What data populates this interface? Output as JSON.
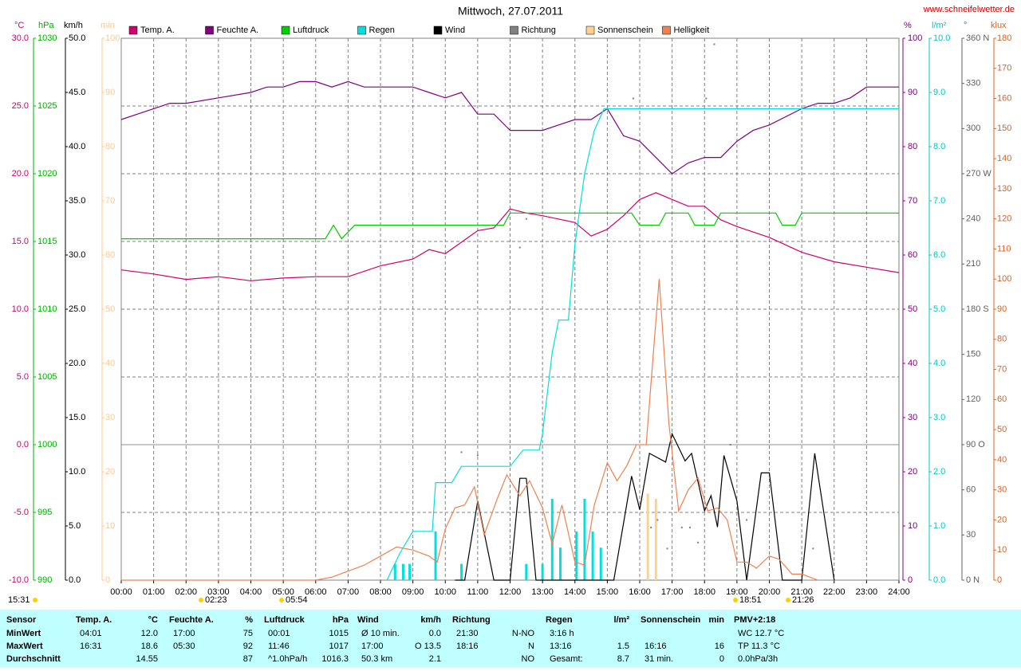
{
  "chart_data": {
    "type": "line",
    "title": "Mittwoch, 27.07.2011",
    "source": "www.schneifelwetter.de",
    "xlim": [
      0,
      24
    ],
    "xticks": [
      {
        "value": 0,
        "label": "00:00"
      },
      {
        "value": 1,
        "label": "01:00"
      },
      {
        "value": 2,
        "label": "02:00"
      },
      {
        "value": 3,
        "label": "03:00"
      },
      {
        "value": 4,
        "label": "04:00"
      },
      {
        "value": 5,
        "label": "05:00"
      },
      {
        "value": 6,
        "label": "06:00"
      },
      {
        "value": 7,
        "label": "07:00"
      },
      {
        "value": 8,
        "label": "08:00"
      },
      {
        "value": 9,
        "label": "09:00"
      },
      {
        "value": 10,
        "label": "10:00"
      },
      {
        "value": 11,
        "label": "11:00"
      },
      {
        "value": 12,
        "label": "12:00"
      },
      {
        "value": 13,
        "label": "13:00"
      },
      {
        "value": 14,
        "label": "14:00"
      },
      {
        "value": 15,
        "label": "15:00"
      },
      {
        "value": 16,
        "label": "16:00"
      },
      {
        "value": 17,
        "label": "17:00"
      },
      {
        "value": 18,
        "label": "18:00"
      },
      {
        "value": 19,
        "label": "19:00"
      },
      {
        "value": 20,
        "label": "20:00"
      },
      {
        "value": 21,
        "label": "21:00"
      },
      {
        "value": 22,
        "label": "22:00"
      },
      {
        "value": 23,
        "label": "23:00"
      },
      {
        "value": 24,
        "label": "24:00"
      }
    ],
    "grid": true,
    "grid_axis": "temp",
    "axes": {
      "temp": {
        "label": "°C",
        "color": "#cc0077",
        "ylim": [
          -10,
          30
        ],
        "yticks": [
          {
            "value": -10,
            "label": "-10.0"
          },
          {
            "value": -5,
            "label": "-5.0"
          },
          {
            "value": 0,
            "label": "0.0"
          },
          {
            "value": 5,
            "label": "5.0"
          },
          {
            "value": 10,
            "label": "10.0"
          },
          {
            "value": 15,
            "label": "15.0"
          },
          {
            "value": 20,
            "label": "20.0"
          },
          {
            "value": 25,
            "label": "25.0"
          },
          {
            "value": 30,
            "label": "30.0"
          }
        ]
      },
      "hpa": {
        "label": "hPa",
        "color": "#00b000",
        "ylim": [
          990,
          1030
        ],
        "yticks": [
          990,
          995,
          1000,
          1005,
          1010,
          1015,
          1020,
          1025,
          1030
        ]
      },
      "wind": {
        "label": "km/h",
        "color": "#000000",
        "ylim": [
          0,
          50
        ],
        "yticks": [
          {
            "value": 0,
            "label": "0.0"
          },
          {
            "value": 5,
            "label": "5.0"
          },
          {
            "value": 10,
            "label": "10.0"
          },
          {
            "value": 15,
            "label": "15.0"
          },
          {
            "value": 20,
            "label": "20.0"
          },
          {
            "value": 25,
            "label": "25.0"
          },
          {
            "value": 30,
            "label": "30.0"
          },
          {
            "value": 35,
            "label": "35.0"
          },
          {
            "value": 40,
            "label": "40.0"
          },
          {
            "value": 45,
            "label": "45.0"
          },
          {
            "value": 50,
            "label": "50.0"
          }
        ]
      },
      "min": {
        "label": "min",
        "color": "#ffc890",
        "ylim": [
          0,
          100
        ],
        "yticks": [
          0,
          10,
          20,
          30,
          40,
          50,
          60,
          70,
          80,
          90,
          100
        ]
      },
      "hum": {
        "label": "%",
        "color": "#800080",
        "ylim": [
          0,
          100
        ],
        "yticks": [
          0,
          10,
          20,
          30,
          40,
          50,
          60,
          70,
          80,
          90,
          100
        ]
      },
      "rain": {
        "label": "l/m²",
        "color": "#00c8c8",
        "ylim": [
          0,
          10
        ],
        "yticks": [
          {
            "value": 0,
            "label": "0.0"
          },
          {
            "value": 1,
            "label": "1.0"
          },
          {
            "value": 2,
            "label": "2.0"
          },
          {
            "value": 3,
            "label": "3.0"
          },
          {
            "value": 4,
            "label": "4.0"
          },
          {
            "value": 5,
            "label": "5.0"
          },
          {
            "value": 6,
            "label": "6.0"
          },
          {
            "value": 7,
            "label": "7.0"
          },
          {
            "value": 8,
            "label": "8.0"
          },
          {
            "value": 9,
            "label": "9.0"
          },
          {
            "value": 10,
            "label": "10.0"
          }
        ]
      },
      "dir": {
        "label": "°",
        "color": "#606060",
        "ylim": [
          0,
          360
        ],
        "yticks": [
          {
            "value": 0,
            "label": "0 N"
          },
          30,
          60,
          {
            "value": 90,
            "label": "90 O"
          },
          120,
          150,
          {
            "value": 180,
            "label": "180 S"
          },
          210,
          240,
          {
            "value": 270,
            "label": "270 W"
          },
          300,
          330,
          {
            "value": 360,
            "label": "360 N"
          }
        ]
      },
      "klux": {
        "label": "klux",
        "color": "#e06020",
        "ylim": [
          0,
          180
        ],
        "yticks": [
          0,
          10,
          20,
          30,
          40,
          50,
          60,
          70,
          80,
          90,
          100,
          110,
          120,
          130,
          140,
          150,
          160,
          170,
          180
        ]
      }
    },
    "series": [
      {
        "name": "Temp. A.",
        "color": "#d0006f",
        "kind": "line",
        "axis": "temp",
        "x": [
          0,
          1,
          2,
          3,
          4,
          5,
          6,
          7,
          8,
          9,
          9.5,
          10,
          11,
          11.5,
          12,
          12.5,
          13,
          14,
          14.5,
          15,
          15.5,
          16,
          16.5,
          17,
          17.5,
          18,
          18.5,
          19,
          20,
          21,
          22,
          23,
          24
        ],
        "values": [
          12.9,
          12.6,
          12.2,
          12.4,
          12.1,
          12.3,
          12.4,
          12.4,
          13.2,
          13.7,
          14.4,
          14.1,
          15.8,
          16.0,
          17.4,
          17.1,
          16.9,
          16.4,
          15.4,
          15.9,
          16.9,
          18.1,
          18.6,
          18.1,
          17.6,
          17.6,
          16.6,
          16.1,
          15.3,
          14.2,
          13.5,
          13.1,
          12.7
        ]
      },
      {
        "name": "Feuchte A.",
        "color": "#800080",
        "kind": "line",
        "axis": "hum",
        "x": [
          0,
          0.5,
          1,
          1.5,
          2,
          3,
          4,
          4.5,
          5,
          5.5,
          6,
          6.5,
          7,
          7.5,
          8,
          9,
          9.5,
          10,
          10.5,
          11,
          11.5,
          12,
          13,
          13.5,
          14,
          14.5,
          15,
          15.5,
          16,
          16.5,
          17,
          17.5,
          18,
          18.5,
          19,
          19.5,
          20,
          21,
          21.5,
          22,
          22.5,
          23,
          23.5,
          24
        ],
        "values": [
          85,
          86,
          87,
          88,
          88,
          89,
          90,
          91,
          91,
          92,
          92,
          91,
          92,
          91,
          91,
          91,
          90,
          89,
          90,
          86,
          86,
          83,
          83,
          84,
          85,
          85,
          87,
          82,
          81,
          78,
          75,
          77,
          78,
          78,
          81,
          83,
          84,
          87,
          88,
          88,
          89,
          91,
          91,
          91
        ]
      },
      {
        "name": "Luftdruck",
        "color": "#00cc00",
        "kind": "line",
        "axis": "hpa",
        "x": [
          0,
          6.3,
          6.55,
          6.8,
          7.2,
          11.8,
          12.0,
          15.75,
          16.0,
          16.6,
          16.8,
          17.5,
          17.7,
          18.3,
          18.5,
          20.2,
          20.4,
          20.8,
          21.0,
          24
        ],
        "values": [
          1015.2,
          1015.2,
          1016.2,
          1015.2,
          1016.2,
          1016.2,
          1017.1,
          1017.1,
          1016.2,
          1016.2,
          1017.1,
          1017.1,
          1016.2,
          1016.2,
          1017.1,
          1017.1,
          1016.2,
          1016.2,
          1017.1,
          1017.1
        ]
      },
      {
        "name": "Regen",
        "color": "#00e0e0",
        "kind": "line",
        "axis": "rain",
        "x": [
          8.2,
          8.6,
          9.0,
          9.6,
          9.7,
          10.2,
          10.5,
          12.0,
          12.4,
          12.9,
          13.0,
          13.3,
          13.5,
          13.8,
          14.0,
          14.3,
          14.6,
          14.9,
          24
        ],
        "values": [
          0,
          0.5,
          0.9,
          0.9,
          1.8,
          1.8,
          2.1,
          2.1,
          2.4,
          2.4,
          2.7,
          4.2,
          4.8,
          4.8,
          6.2,
          7.5,
          8.3,
          8.7,
          8.7
        ],
        "bar_x": [
          8.45,
          8.7,
          8.9,
          9.7,
          10.5,
          12.5,
          13.0,
          13.3,
          13.55,
          14.05,
          14.3,
          14.55,
          14.8
        ],
        "bar_values": [
          0.3,
          0.3,
          0.3,
          0.9,
          0.3,
          0.3,
          0.3,
          1.5,
          0.6,
          0.9,
          1.5,
          0.9,
          0.6
        ]
      },
      {
        "name": "Wind",
        "color": "#000000",
        "kind": "line",
        "axis": "wind",
        "x": [
          10.3,
          10.6,
          11.0,
          11.5,
          12.0,
          12.3,
          12.5,
          12.8,
          15.2,
          15.75,
          16.0,
          16.3,
          16.8,
          17.0,
          17.4,
          17.6,
          18.0,
          18.2,
          18.4,
          18.6,
          19.0,
          19.3,
          19.75,
          20.0,
          20.4,
          21.0,
          21.4,
          22.0
        ],
        "values": [
          0,
          0,
          7.3,
          0,
          0,
          9.4,
          9.4,
          0,
          0,
          9.6,
          6.5,
          11.7,
          10.9,
          13.5,
          11.0,
          11.7,
          6.4,
          7.8,
          4.9,
          11.5,
          7.3,
          0,
          9.9,
          9.9,
          0,
          0,
          11.7,
          0
        ]
      },
      {
        "name": "Richtung",
        "color": "#808080",
        "kind": "dots",
        "axis": "dir",
        "x": [
          10.5,
          11.0,
          12.3,
          12.5,
          15.8,
          16.35,
          16.55,
          16.85,
          17.3,
          17.55,
          17.8,
          18.05,
          18.3,
          18.8,
          19.3,
          21.35
        ],
        "values": [
          85,
          83,
          221,
          240,
          320,
          35,
          40,
          21,
          35,
          35,
          25,
          320,
          356,
          90,
          40,
          21
        ]
      },
      {
        "name": "Sonnenschein",
        "color": "#ffd090",
        "kind": "bars",
        "axis": "min",
        "x": [
          16.25,
          16.5
        ],
        "values": [
          16,
          15
        ]
      },
      {
        "name": "Helligkeit",
        "color": "#f08050",
        "kind": "line",
        "axis": "klux",
        "x": [
          0,
          6,
          6.5,
          7,
          7.5,
          8,
          8.5,
          9,
          9.5,
          9.75,
          10,
          10.3,
          10.6,
          10.9,
          11.2,
          11.6,
          11.9,
          12.3,
          12.6,
          13,
          13.3,
          13.6,
          14,
          14.3,
          14.6,
          15,
          15.3,
          15.6,
          15.9,
          16.2,
          16.6,
          16.9,
          17.2,
          17.5,
          17.8,
          18.1,
          18.4,
          18.7,
          19,
          19.3,
          19.6,
          20,
          20.3,
          20.7,
          21,
          21.5
        ],
        "values": [
          0,
          0,
          1,
          3,
          5,
          8,
          11,
          10,
          8,
          6,
          17,
          24,
          25,
          31,
          15,
          27,
          35,
          28,
          33,
          24,
          12,
          25,
          6,
          5,
          25,
          39,
          33,
          38,
          45,
          45,
          100,
          52,
          23,
          30,
          34,
          23,
          24,
          20,
          6,
          6,
          4,
          8,
          7,
          2,
          2,
          0
        ]
      }
    ],
    "annotations": [
      "15:31",
      "02:23",
      "05:54",
      "18:51",
      "21:26"
    ]
  },
  "table": {
    "columns": [
      {
        "header": "Sensor",
        "rows": [
          {
            "left": "MinWert"
          },
          {
            "left": "MaxWert"
          },
          {
            "left": "Durchschnitt"
          }
        ]
      },
      {
        "header": "Temp. A.",
        "unit": "°C",
        "rows": [
          {
            "left": "04:01",
            "right": "12.0"
          },
          {
            "left": "16:31",
            "right": "18.6"
          },
          {
            "right": "14.55"
          }
        ]
      },
      {
        "header": "Feuchte A.",
        "unit": "%",
        "rows": [
          {
            "left": "17:00",
            "right": "75"
          },
          {
            "left": "05:30",
            "right": "92"
          },
          {
            "right": "87"
          }
        ]
      },
      {
        "header": "Luftdruck",
        "unit": "hPa",
        "rows": [
          {
            "left": "00:01",
            "right": "1015"
          },
          {
            "left": "11:46",
            "right": "1017"
          },
          {
            "left": "^1.0hPa/h",
            "right": "1016.3"
          }
        ]
      },
      {
        "header": "Wind",
        "unit": "km/h",
        "rows": [
          {
            "left": "Ø 10 min.",
            "right": "0.0"
          },
          {
            "left": "17:00",
            "right": "O 13.5"
          },
          {
            "left": "50.3 km",
            "right": "2.1"
          }
        ]
      },
      {
        "header": "Richtung",
        "rows": [
          {
            "left": "21:30",
            "right": "N-NO"
          },
          {
            "left": "18:16",
            "right": "N"
          },
          {
            "right": "NO"
          }
        ]
      },
      {
        "header": "Regen",
        "unit": "l/m²",
        "rows": [
          {
            "left": "3:16 h"
          },
          {
            "left": "13:16",
            "right": "1.5"
          },
          {
            "left": "Gesamt:",
            "right": "8.7"
          }
        ]
      },
      {
        "header": "Sonnenschein",
        "unit": "min",
        "rows": [
          null,
          {
            "left": "16:16",
            "right": "16"
          },
          {
            "left": "31 min.",
            "right": "0"
          }
        ]
      },
      {
        "header": "PMV+2:18",
        "rows": [
          {
            "left": "WC 12.7 °C"
          },
          {
            "left": "TP 11.3 °C"
          },
          {
            "left": "0.0hPa/3h"
          }
        ]
      }
    ]
  }
}
